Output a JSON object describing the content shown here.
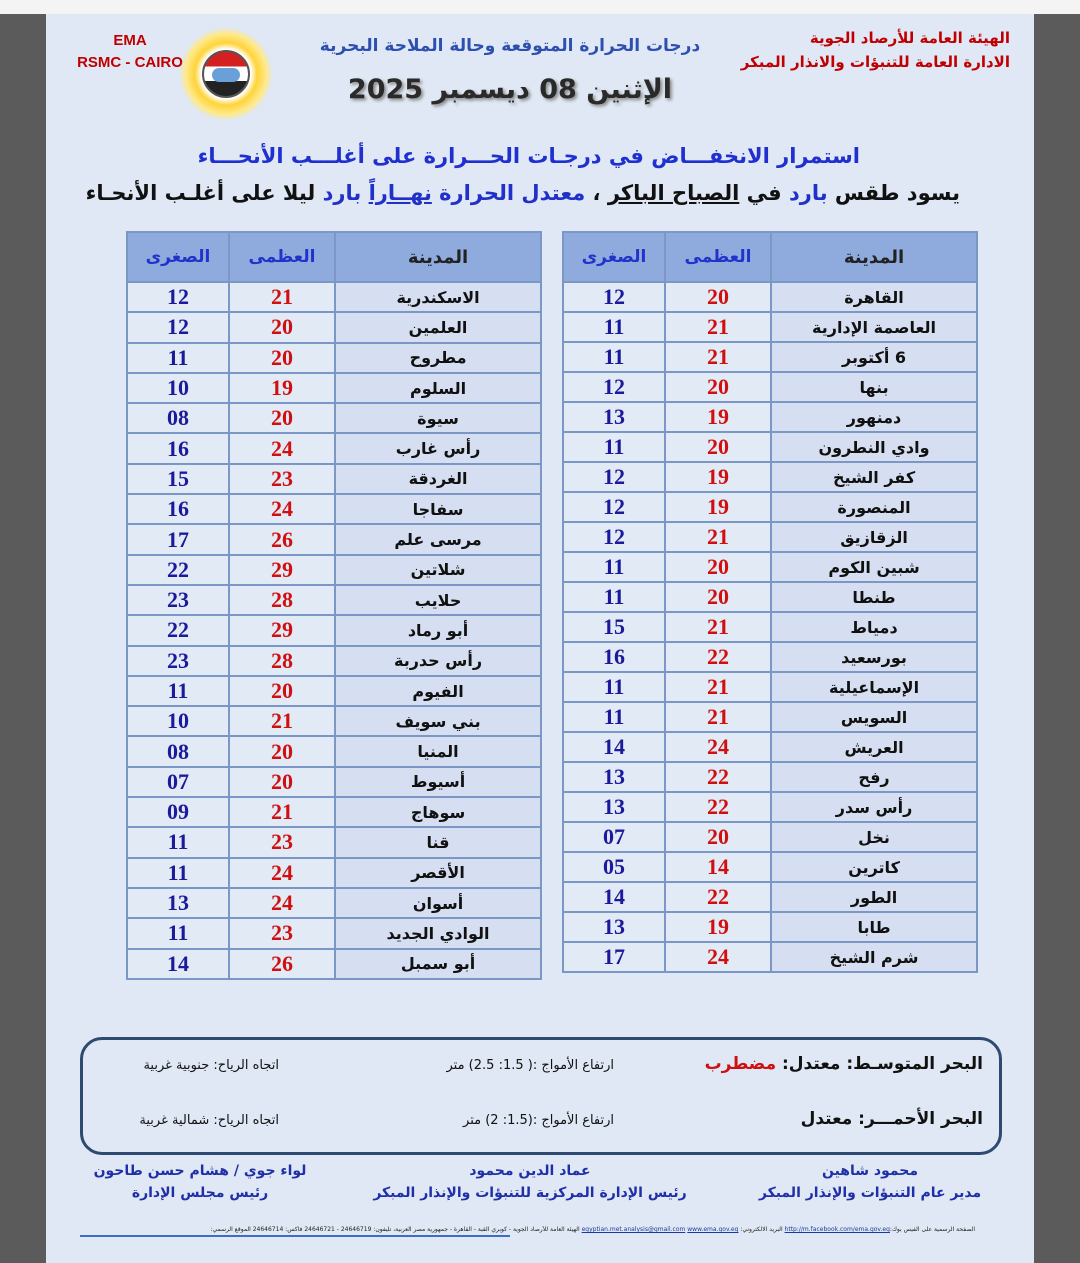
{
  "header": {
    "ema_line1": "EMA",
    "ema_line2": "RSMC - CAIRO",
    "org_line1": "الهيئة العامة للأرصاد الجوية",
    "org_line2": "الادارة العامة للتنبؤات والانذار المبكر",
    "title": "درجات الحرارة المتوقعة وحالة الملاحة البحرية",
    "date": "الإثنين 08 ديسمبر 2025"
  },
  "headline": "استمرار الانخفـــاض في درجـات الحـــرارة على أغلـــب الأنحـــاء",
  "summary": {
    "p1": "يسود طقس ",
    "w1": "بارد",
    "p2": " في ",
    "w2": "الصباح الباكر",
    "p3": " ، ",
    "w3": "معتدل الحرارة",
    "p4": " ",
    "w4": "نهــاراً",
    "p5": "  ",
    "w5": "بارد",
    "p6": " ليلا على أغلـب الأنحـاء"
  },
  "table_headers": {
    "city": "المدينة",
    "max": "العظمى",
    "min": "الصغرى"
  },
  "colors": {
    "max": "#d01010",
    "min": "#1a1a9a",
    "header_bg": "#8faadc",
    "accent_blue": "#2030c8",
    "alert_red": "#d01010"
  },
  "table_right": [
    {
      "city": "القاهرة",
      "max": "20",
      "min": "12"
    },
    {
      "city": "العاصمة الإدارية",
      "max": "21",
      "min": "11"
    },
    {
      "city": "6 أكتوبر",
      "max": "21",
      "min": "11"
    },
    {
      "city": "بنها",
      "max": "20",
      "min": "12"
    },
    {
      "city": "دمنهور",
      "max": "19",
      "min": "13"
    },
    {
      "city": "وادي النطرون",
      "max": "20",
      "min": "11"
    },
    {
      "city": "كفر الشيخ",
      "max": "19",
      "min": "12"
    },
    {
      "city": "المنصورة",
      "max": "19",
      "min": "12"
    },
    {
      "city": "الزقازيق",
      "max": "21",
      "min": "12"
    },
    {
      "city": "شبين الكوم",
      "max": "20",
      "min": "11"
    },
    {
      "city": "طنطا",
      "max": "20",
      "min": "11"
    },
    {
      "city": "دمياط",
      "max": "21",
      "min": "15"
    },
    {
      "city": "بورسعيد",
      "max": "22",
      "min": "16"
    },
    {
      "city": "الإسماعيلية",
      "max": "21",
      "min": "11"
    },
    {
      "city": "السويس",
      "max": "21",
      "min": "11"
    },
    {
      "city": "العريش",
      "max": "24",
      "min": "14"
    },
    {
      "city": "رفح",
      "max": "22",
      "min": "13"
    },
    {
      "city": "رأس سدر",
      "max": "22",
      "min": "13"
    },
    {
      "city": "نخل",
      "max": "20",
      "min": "07"
    },
    {
      "city": "كاترين",
      "max": "14",
      "min": "05"
    },
    {
      "city": "الطور",
      "max": "22",
      "min": "14"
    },
    {
      "city": "طابا",
      "max": "19",
      "min": "13"
    },
    {
      "city": "شرم الشيخ",
      "max": "24",
      "min": "17"
    }
  ],
  "table_left": [
    {
      "city": "الاسكندرية",
      "max": "21",
      "min": "12"
    },
    {
      "city": "العلمين",
      "max": "20",
      "min": "12"
    },
    {
      "city": "مطروح",
      "max": "20",
      "min": "11"
    },
    {
      "city": "السلوم",
      "max": "19",
      "min": "10"
    },
    {
      "city": "سيوة",
      "max": "20",
      "min": "08"
    },
    {
      "city": "رأس غارب",
      "max": "24",
      "min": "16"
    },
    {
      "city": "الغردقة",
      "max": "23",
      "min": "15"
    },
    {
      "city": "سفاجا",
      "max": "24",
      "min": "16"
    },
    {
      "city": "مرسى علم",
      "max": "26",
      "min": "17"
    },
    {
      "city": "شلاتين",
      "max": "29",
      "min": "22"
    },
    {
      "city": "حلايب",
      "max": "28",
      "min": "23"
    },
    {
      "city": "أبو رماد",
      "max": "29",
      "min": "22"
    },
    {
      "city": "رأس حدربة",
      "max": "28",
      "min": "23"
    },
    {
      "city": "الفيوم",
      "max": "20",
      "min": "11"
    },
    {
      "city": "بني سويف",
      "max": "21",
      "min": "10"
    },
    {
      "city": "المنيا",
      "max": "20",
      "min": "08"
    },
    {
      "city": "أسيوط",
      "max": "20",
      "min": "07"
    },
    {
      "city": "سوهاج",
      "max": "21",
      "min": "09"
    },
    {
      "city": "قنا",
      "max": "23",
      "min": "11"
    },
    {
      "city": "الأقصر",
      "max": "24",
      "min": "11"
    },
    {
      "city": "أسوان",
      "max": "24",
      "min": "13"
    },
    {
      "city": "الوادي الجديد",
      "max": "23",
      "min": "11"
    },
    {
      "city": "أبو سمبل",
      "max": "26",
      "min": "14"
    }
  ],
  "sea": {
    "med": {
      "name": "البحر المتوسـط: معتدل: ",
      "state": "مضطرب",
      "waves": "ارتفاع الأمواج :( 1.5: 2.5) متر",
      "wind": "اتجاه الرياح: جنوبية غربية"
    },
    "red": {
      "name": "البحر الأحمـــر: معتدل",
      "waves": "ارتفاع الأمواج :(1.5: 2) متر",
      "wind": "اتجاه الرياح: شمالية غربية"
    }
  },
  "signatures": [
    {
      "name": "محمود شاهين",
      "title": "مدير عام التنبؤات والإنذار المبكر"
    },
    {
      "name": "عماد الدين محمود",
      "title": "رئيس الإدارة المركزية للتنبؤات والإنذار المبكر"
    },
    {
      "name": "لواء جوي / هشام حسن طاحون",
      "title": "رئيس مجلس الإدارة"
    }
  ],
  "footer": {
    "facebook_label": "الصفحة الرسمية على الفيس بوك:",
    "facebook_url": "http://m.facebook.com/ema.gov.eg",
    "email_label": " البريد الالكتروني: ",
    "email": "egyptian.met.analysis@gmail.com",
    "website": "www.ema.gov.eg",
    "address": " الهيئة العامة للأرصاد الجوية - كوبري القبة - القاهرة - جمهورية مصر العربية، تليفون: 24646719 - 24646721 فاكس: 24646714 الموقع الرسمي:"
  }
}
